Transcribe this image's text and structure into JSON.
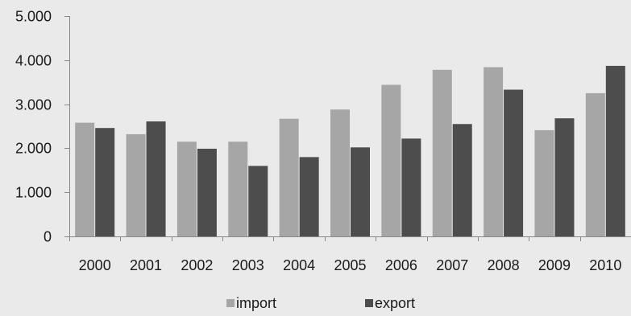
{
  "chart_data": {
    "type": "bar",
    "title": "",
    "xlabel": "",
    "ylabel": "",
    "categories": [
      "2000",
      "2001",
      "2002",
      "2003",
      "2004",
      "2005",
      "2006",
      "2007",
      "2008",
      "2009",
      "2010"
    ],
    "series": [
      {
        "name": "import",
        "color": "#a6a6a6",
        "values": [
          2580,
          2320,
          2150,
          2150,
          2670,
          2880,
          3440,
          3780,
          3840,
          2410,
          3250
        ]
      },
      {
        "name": "export",
        "color": "#4d4d4d",
        "values": [
          2460,
          2610,
          1990,
          1600,
          1800,
          2020,
          2220,
          2550,
          3330,
          2680,
          3870
        ]
      }
    ],
    "ylim": [
      0,
      5000
    ],
    "yticks": [
      0,
      1000,
      2000,
      3000,
      4000,
      5000
    ],
    "ytick_labels": [
      "0",
      "1.000",
      "2.000",
      "3.000",
      "4.000",
      "5.000"
    ],
    "grid": false,
    "legend_position": "bottom"
  }
}
